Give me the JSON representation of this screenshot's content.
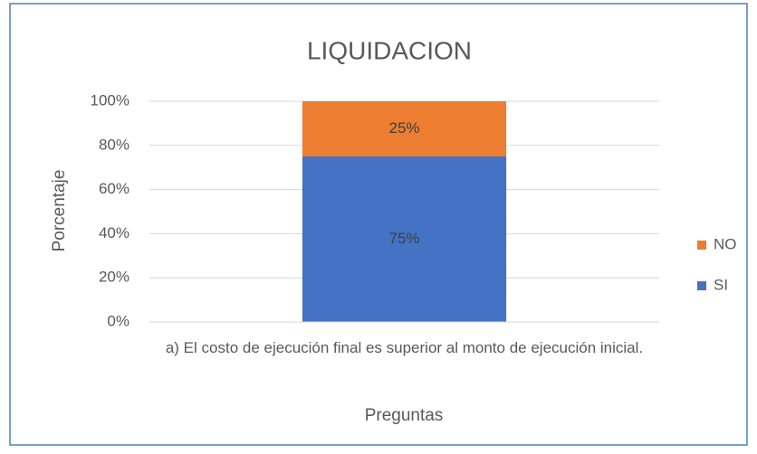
{
  "chart_data": {
    "type": "stacked_bar",
    "title": "LIQUIDACION",
    "x_label": "Preguntas",
    "y_label": "Porcentaje",
    "categories": [
      "a)  El costo de ejecución final es superior al monto de ejecución inicial."
    ],
    "series": [
      {
        "name": "SI",
        "color": "#4472c4",
        "values": [
          75
        ],
        "value_labels": [
          "75%"
        ]
      },
      {
        "name": "NO",
        "color": "#ed7d31",
        "values": [
          25
        ],
        "value_labels": [
          "25%"
        ]
      }
    ],
    "ylim": [
      0,
      100
    ],
    "yticks": [
      {
        "value": 0,
        "label": "0%"
      },
      {
        "value": 20,
        "label": "20%"
      },
      {
        "value": 40,
        "label": "40%"
      },
      {
        "value": 60,
        "label": "60%"
      },
      {
        "value": 80,
        "label": "80%"
      },
      {
        "value": 100,
        "label": "100%"
      }
    ],
    "grid": true,
    "legend": "right"
  }
}
